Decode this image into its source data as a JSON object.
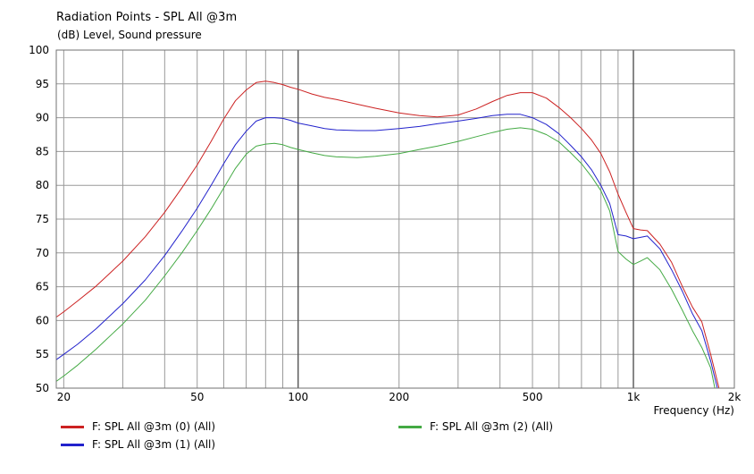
{
  "chart_data": {
    "type": "line",
    "title": "Radiation Points - SPL All @3m",
    "ylabel": "(dB)  Level, Sound pressure",
    "xlabel": "Frequency  (Hz)",
    "x_scale": "log",
    "xlim": [
      19,
      2000
    ],
    "ylim": [
      50,
      100
    ],
    "grid": true,
    "legend_placement": "bottom",
    "y_ticks": [
      50,
      55,
      60,
      65,
      70,
      75,
      80,
      85,
      90,
      95,
      100
    ],
    "y_tick_labels": [
      "50",
      "55",
      "60",
      "65",
      "70",
      "75",
      "80",
      "85",
      "90",
      "95",
      "100"
    ],
    "x_grid": [
      20,
      30,
      40,
      50,
      60,
      70,
      80,
      90,
      100,
      200,
      300,
      400,
      500,
      600,
      700,
      800,
      900,
      1000,
      2000
    ],
    "x_major_grid": [
      100,
      1000
    ],
    "x_ticks": [
      20,
      50,
      100,
      200,
      500,
      1000,
      2000
    ],
    "x_tick_labels": [
      "20",
      "50",
      "100",
      "200",
      "500",
      "1k",
      "2k"
    ],
    "series": [
      {
        "name": "F: SPL All @3m (0)  (All)",
        "color": "#cc2222",
        "x": [
          19,
          20,
          22,
          25,
          30,
          35,
          40,
          45,
          50,
          55,
          60,
          65,
          70,
          75,
          80,
          85,
          90,
          95,
          100,
          110,
          120,
          130,
          150,
          170,
          200,
          230,
          260,
          300,
          340,
          380,
          420,
          460,
          500,
          550,
          600,
          650,
          700,
          750,
          800,
          850,
          900,
          950,
          1000,
          1050,
          1100,
          1200,
          1300,
          1400,
          1500,
          1600,
          1700,
          1750,
          1800
        ],
        "y": [
          60.5,
          61.3,
          62.9,
          65.1,
          68.8,
          72.4,
          76.0,
          79.6,
          83.0,
          86.5,
          89.8,
          92.5,
          94.1,
          95.2,
          95.4,
          95.2,
          94.9,
          94.5,
          94.2,
          93.5,
          93.0,
          92.7,
          92.0,
          91.4,
          90.7,
          90.3,
          90.1,
          90.4,
          91.3,
          92.4,
          93.3,
          93.7,
          93.7,
          92.9,
          91.5,
          90.0,
          88.4,
          86.7,
          84.7,
          82.0,
          78.7,
          76.0,
          73.6,
          73.4,
          73.3,
          71.3,
          68.6,
          65.0,
          62.0,
          59.8,
          55.0,
          52.5,
          50.0
        ]
      },
      {
        "name": "F: SPL All @3m (1)  (All)",
        "color": "#2222cc",
        "x": [
          19,
          20,
          22,
          25,
          30,
          35,
          40,
          45,
          50,
          55,
          60,
          65,
          70,
          75,
          80,
          85,
          90,
          95,
          100,
          110,
          120,
          130,
          150,
          170,
          200,
          230,
          260,
          300,
          340,
          380,
          420,
          460,
          500,
          550,
          600,
          650,
          700,
          750,
          800,
          850,
          900,
          950,
          1000,
          1050,
          1100,
          1200,
          1300,
          1400,
          1500,
          1600,
          1700,
          1750,
          1780
        ],
        "y": [
          54.2,
          55.0,
          56.5,
          58.8,
          62.5,
          66.0,
          69.6,
          73.2,
          76.6,
          80.0,
          83.2,
          86.0,
          88.0,
          89.5,
          90.0,
          90.0,
          89.9,
          89.6,
          89.2,
          88.8,
          88.4,
          88.2,
          88.1,
          88.1,
          88.4,
          88.7,
          89.1,
          89.5,
          89.9,
          90.3,
          90.5,
          90.5,
          90.0,
          89.0,
          87.6,
          85.9,
          84.2,
          82.3,
          80.0,
          77.3,
          72.7,
          72.5,
          72.1,
          72.3,
          72.5,
          70.6,
          67.5,
          64.3,
          61.0,
          58.5,
          54.0,
          51.5,
          50.0
        ]
      },
      {
        "name": "F: SPL All @3m (2)  (All)",
        "color": "#44aa44",
        "x": [
          19,
          20,
          22,
          25,
          30,
          35,
          40,
          45,
          50,
          55,
          60,
          65,
          70,
          75,
          80,
          85,
          90,
          95,
          100,
          110,
          120,
          130,
          150,
          170,
          200,
          230,
          260,
          300,
          340,
          380,
          420,
          460,
          500,
          550,
          600,
          650,
          700,
          750,
          800,
          850,
          900,
          950,
          1000,
          1050,
          1100,
          1200,
          1300,
          1400,
          1500,
          1600,
          1700,
          1750
        ],
        "y": [
          51.0,
          51.8,
          53.4,
          55.8,
          59.5,
          63.0,
          66.6,
          70.0,
          73.3,
          76.5,
          79.6,
          82.5,
          84.6,
          85.8,
          86.1,
          86.2,
          86.0,
          85.6,
          85.3,
          84.8,
          84.4,
          84.2,
          84.1,
          84.3,
          84.7,
          85.3,
          85.8,
          86.5,
          87.2,
          87.8,
          88.3,
          88.5,
          88.3,
          87.5,
          86.4,
          84.8,
          83.2,
          81.3,
          79.2,
          76.2,
          70.2,
          69.1,
          68.3,
          68.8,
          69.3,
          67.5,
          64.6,
          61.5,
          58.5,
          56.0,
          53.0,
          50.0
        ]
      }
    ]
  }
}
